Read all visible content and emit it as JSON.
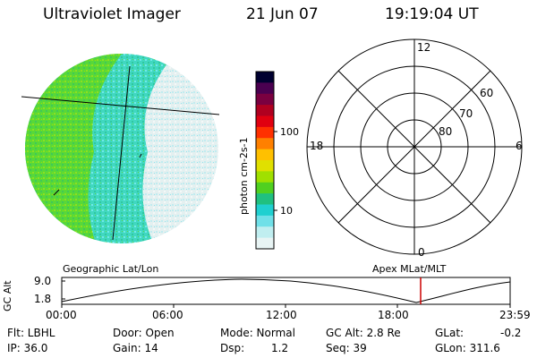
{
  "header": {
    "instrument": "Ultraviolet Imager",
    "date": "21 Jun 07",
    "time": "19:19:04 UT"
  },
  "colorbar": {
    "label": "photon cm-2s-1",
    "ticks": [
      "100",
      "10"
    ],
    "scale": "log",
    "colors": [
      "#000030",
      "#4a0050",
      "#7a0040",
      "#b00020",
      "#e00010",
      "#ff3000",
      "#ff8000",
      "#ffc000",
      "#e0e000",
      "#a0e000",
      "#50d020",
      "#20c080",
      "#20d0d0",
      "#70e0e8",
      "#c0eef0",
      "#e8f4f4"
    ]
  },
  "polar_grid": {
    "mlt_labels": [
      "12",
      "18",
      "6",
      "0"
    ],
    "mlat_labels": [
      "60",
      "70",
      "80"
    ]
  },
  "timeline": {
    "left_title": "Geographic Lat/Lon",
    "right_title": "Apex MLat/MLT",
    "axis_label": "GC Alt",
    "y_ticks": [
      "9.0",
      "1.8"
    ],
    "x_ticks": [
      "00:00",
      "06:00",
      "12:00",
      "18:00",
      "23:59"
    ],
    "marker_color": "#cc0000"
  },
  "status": {
    "flt": "Flt: LBHL",
    "ip": "IP: 36.0",
    "door": "Door: Open",
    "gain": "Gain: 14",
    "mode": "Mode: Normal",
    "dsp_label": "Dsp:",
    "dsp_value": "1.2",
    "gc_alt": "GC Alt: 2.8 Re",
    "seq": "Seq: 39",
    "glat_label": "GLat:",
    "glat_value": "-0.2",
    "glon": "GLon: 311.6"
  }
}
